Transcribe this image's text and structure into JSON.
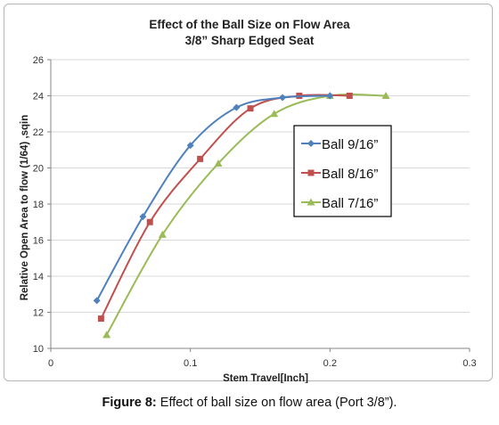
{
  "chart_data": {
    "type": "line",
    "title": "Effect of the Ball Size on Flow Area",
    "subtitle": "3/8” Sharp Edged Seat",
    "xlabel": "Stem Travel[Inch]",
    "ylabel": "Relative Open Area to flow (1/64) ,sqin",
    "xlim": [
      0,
      0.3
    ],
    "ylim": [
      10,
      26
    ],
    "xticks": [
      "0",
      "0.1",
      "0.2",
      "0.3"
    ],
    "yticks": [
      "10",
      "12",
      "14",
      "16",
      "18",
      "20",
      "22",
      "24",
      "26"
    ],
    "grid": "horizontal",
    "legend_position": "right",
    "series": [
      {
        "name": "Ball 9/16”",
        "color": "#4f81bd",
        "marker": "diamond",
        "x": [
          0.033,
          0.066,
          0.1,
          0.133,
          0.166,
          0.2
        ],
        "y": [
          12.65,
          17.3,
          21.25,
          23.35,
          23.9,
          24.0
        ]
      },
      {
        "name": "Ball 8/16”",
        "color": "#c0504d",
        "marker": "square",
        "x": [
          0.036,
          0.071,
          0.107,
          0.143,
          0.178,
          0.214
        ],
        "y": [
          11.65,
          17.0,
          20.5,
          23.3,
          24.0,
          24.0
        ]
      },
      {
        "name": "Ball 7/16”",
        "color": "#9bbb59",
        "marker": "triangle",
        "x": [
          0.04,
          0.08,
          0.12,
          0.16,
          0.2,
          0.24
        ],
        "y": [
          10.75,
          16.3,
          20.25,
          23.0,
          24.0,
          24.0
        ]
      }
    ]
  },
  "caption": {
    "label": "Figure 8:",
    "text": " Effect of ball size on flow area (Port 3/8”)."
  }
}
